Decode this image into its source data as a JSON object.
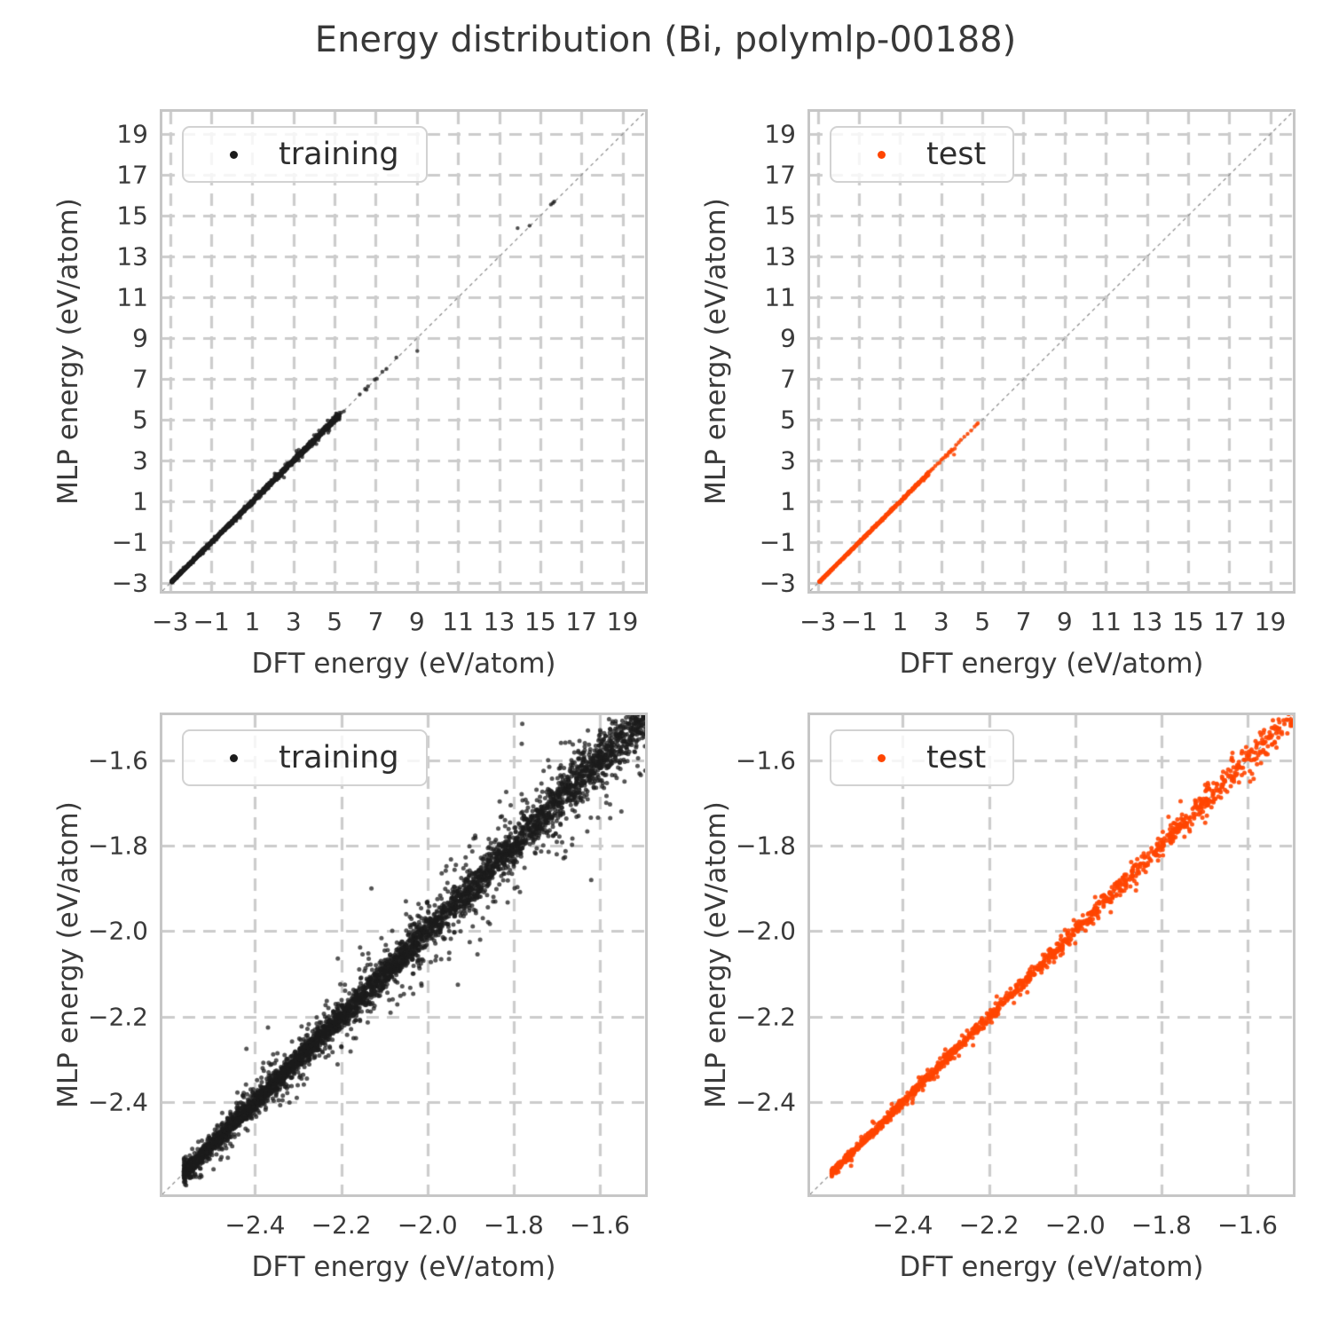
{
  "title": "Energy distribution (Bi, polymlp-00188)",
  "style": {
    "background": "#ffffff",
    "frame_color": "#c6c6c6",
    "grid_color": "#cccccc",
    "grid_dash": [
      14,
      9
    ],
    "grid_width": 3.2,
    "identity_color": "#8a8a8a",
    "identity_dash": [
      4,
      4
    ],
    "identity_width": 1.2,
    "text_color": "#3a3a3a",
    "training_color": "#1c1c1c",
    "test_color": "#ff4500"
  },
  "chart_data": [
    {
      "subplot": "top-left",
      "type": "scatter",
      "series_label": "training",
      "marker_color": "#1c1c1c",
      "marker_radius": 2.2,
      "marker_alpha": 0.78,
      "xlabel": "DFT energy (eV/atom)",
      "ylabel": "MLP energy (eV/atom)",
      "xlim": [
        -3.38,
        20.1
      ],
      "ylim": [
        -3.38,
        20.1
      ],
      "xticks": [
        -3,
        -1,
        1,
        3,
        5,
        7,
        9,
        11,
        13,
        15,
        17,
        19
      ],
      "xtick_labels": [
        "−3",
        "−1",
        "1",
        "3",
        "5",
        "7",
        "9",
        "11",
        "13",
        "15",
        "17",
        "19"
      ],
      "yticks": [
        -3,
        -1,
        1,
        3,
        5,
        7,
        9,
        11,
        13,
        15,
        17,
        19
      ],
      "ytick_labels": [
        "−3",
        "−1",
        "1",
        "3",
        "5",
        "7",
        "9",
        "11",
        "13",
        "15",
        "17",
        "19"
      ],
      "identity_line": true,
      "legend": "upper left",
      "seed": 11,
      "band": {
        "x_min": -2.92,
        "x_max": 5.25,
        "n": 2800,
        "skew": 1.8,
        "sigma_min": 0.012,
        "sigma_max": 0.07,
        "outlier_frac": 0.08,
        "outlier_scale": 3.0,
        "clip_dev": 0.38
      },
      "points": [
        [
          5.32,
          5.36
        ],
        [
          5.45,
          5.42
        ],
        [
          6.22,
          6.25
        ],
        [
          6.48,
          6.52
        ],
        [
          6.55,
          6.48
        ],
        [
          6.62,
          6.64
        ],
        [
          6.95,
          6.98
        ],
        [
          7.05,
          7.02
        ],
        [
          7.32,
          7.36
        ],
        [
          7.52,
          7.5
        ],
        [
          8.0,
          8.06
        ],
        [
          9.02,
          8.38
        ],
        [
          13.9,
          14.4
        ],
        [
          14.48,
          14.52
        ],
        [
          15.52,
          15.56
        ],
        [
          15.62,
          15.63
        ],
        [
          15.68,
          15.7
        ]
      ]
    },
    {
      "subplot": "top-right",
      "type": "scatter",
      "series_label": "test",
      "marker_color": "#ff4500",
      "marker_radius": 2.2,
      "marker_alpha": 0.88,
      "xlabel": "DFT energy (eV/atom)",
      "ylabel": "MLP energy (eV/atom)",
      "xlim": [
        -3.38,
        20.1
      ],
      "ylim": [
        -3.38,
        20.1
      ],
      "xticks": [
        -3,
        -1,
        1,
        3,
        5,
        7,
        9,
        11,
        13,
        15,
        17,
        19
      ],
      "xtick_labels": [
        "−3",
        "−1",
        "1",
        "3",
        "5",
        "7",
        "9",
        "11",
        "13",
        "15",
        "17",
        "19"
      ],
      "yticks": [
        -3,
        -1,
        1,
        3,
        5,
        7,
        9,
        11,
        13,
        15,
        17,
        19
      ],
      "ytick_labels": [
        "−3",
        "−1",
        "1",
        "3",
        "5",
        "7",
        "9",
        "11",
        "13",
        "15",
        "17",
        "19"
      ],
      "identity_line": true,
      "legend": "upper left",
      "seed": 22,
      "band": {
        "x_min": -2.92,
        "x_max": 2.4,
        "n": 780,
        "skew": 1.7,
        "sigma_min": 0.008,
        "sigma_max": 0.035,
        "outlier_frac": 0.05,
        "outlier_scale": 2.5,
        "clip_dev": 0.15
      },
      "points": [
        [
          2.45,
          2.48
        ],
        [
          2.52,
          2.56
        ],
        [
          2.6,
          2.62
        ],
        [
          2.7,
          2.74
        ],
        [
          2.82,
          2.86
        ],
        [
          2.92,
          2.9
        ],
        [
          3.0,
          3.05
        ],
        [
          3.08,
          3.12
        ],
        [
          3.18,
          3.18
        ],
        [
          3.22,
          3.28
        ],
        [
          3.3,
          3.25
        ],
        [
          3.35,
          3.38
        ],
        [
          3.4,
          3.45
        ],
        [
          3.45,
          3.42
        ],
        [
          3.5,
          3.55
        ],
        [
          3.55,
          3.52
        ],
        [
          3.62,
          3.3
        ],
        [
          3.66,
          3.6
        ],
        [
          3.72,
          3.78
        ],
        [
          3.85,
          3.9
        ],
        [
          3.95,
          4.02
        ],
        [
          4.12,
          4.18
        ],
        [
          4.28,
          4.32
        ],
        [
          4.45,
          4.48
        ],
        [
          4.62,
          4.68
        ],
        [
          4.72,
          4.78
        ],
        [
          4.78,
          4.84
        ]
      ]
    },
    {
      "subplot": "bottom-left",
      "type": "scatter",
      "series_label": "training",
      "marker_color": "#1c1c1c",
      "marker_radius": 2.5,
      "marker_alpha": 0.75,
      "xlabel": "DFT energy (eV/atom)",
      "ylabel": "MLP energy (eV/atom)",
      "xlim": [
        -2.615,
        -1.495
      ],
      "ylim": [
        -2.615,
        -1.495
      ],
      "xticks": [
        -2.4,
        -2.2,
        -2.0,
        -1.8,
        -1.6
      ],
      "xtick_labels": [
        "−2.4",
        "−2.2",
        "−2.0",
        "−1.8",
        "−1.6"
      ],
      "yticks": [
        -2.4,
        -2.2,
        -2.0,
        -1.8,
        -1.6
      ],
      "ytick_labels": [
        "−2.4",
        "−2.2",
        "−2.0",
        "−1.8",
        "−1.6"
      ],
      "identity_line": true,
      "legend": "upper left",
      "seed": 33,
      "band": {
        "x_min": -2.565,
        "x_max": -1.44,
        "n": 5200,
        "skew": 1.45,
        "sigma_min": 0.006,
        "sigma_max": 0.03,
        "outlier_frac": 0.2,
        "outlier_scale": 3.0,
        "clip_dev": 0.22
      },
      "points": [
        [
          -2.13,
          -1.9
        ],
        [
          -1.78,
          -1.515
        ],
        [
          -1.62,
          -1.88
        ],
        [
          -1.55,
          -1.72
        ],
        [
          -1.505,
          -1.635
        ],
        [
          -2.42,
          -2.275
        ],
        [
          -2.37,
          -2.225
        ],
        [
          -1.95,
          -2.065
        ],
        [
          -1.69,
          -1.56
        ],
        [
          -1.585,
          -1.7
        ],
        [
          -2.05,
          -1.93
        ],
        [
          -1.72,
          -1.6
        ],
        [
          -1.52,
          -1.58
        ],
        [
          -1.7,
          -1.82
        ],
        [
          -1.48,
          -1.56
        ]
      ]
    },
    {
      "subplot": "bottom-right",
      "type": "scatter",
      "series_label": "test",
      "marker_color": "#ff4500",
      "marker_radius": 2.5,
      "marker_alpha": 0.9,
      "xlabel": "DFT energy (eV/atom)",
      "ylabel": "MLP energy (eV/atom)",
      "xlim": [
        -2.615,
        -1.495
      ],
      "ylim": [
        -2.615,
        -1.495
      ],
      "xticks": [
        -2.4,
        -2.2,
        -2.0,
        -1.8,
        -1.6
      ],
      "xtick_labels": [
        "−2.4",
        "−2.2",
        "−2.0",
        "−1.8",
        "−1.6"
      ],
      "yticks": [
        -2.4,
        -2.2,
        -2.0,
        -1.8,
        -1.6
      ],
      "ytick_labels": [
        "−2.4",
        "−2.2",
        "−2.0",
        "−1.8",
        "−1.6"
      ],
      "identity_line": true,
      "legend": "upper left",
      "seed": 44,
      "band": {
        "x_min": -2.565,
        "x_max": -1.45,
        "n": 1300,
        "skew": 1.35,
        "sigma_min": 0.004,
        "sigma_max": 0.016,
        "outlier_frac": 0.07,
        "outlier_scale": 2.5,
        "clip_dev": 0.06
      },
      "points": [
        [
          -2.52,
          -2.548
        ],
        [
          -2.47,
          -2.445
        ],
        [
          -2.0,
          -2.028
        ],
        [
          -1.87,
          -1.838
        ],
        [
          -1.735,
          -1.762
        ],
        [
          -1.62,
          -1.652
        ],
        [
          -1.528,
          -1.505
        ],
        [
          -1.5,
          -1.52
        ]
      ]
    }
  ]
}
